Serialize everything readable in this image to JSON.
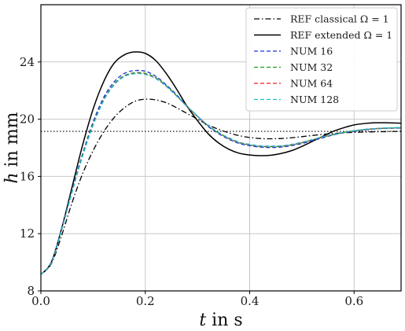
{
  "chart_data": {
    "type": "line",
    "xlabel": {
      "var": "t",
      "text": " in s"
    },
    "ylabel": {
      "var": "h",
      "text": " in mm"
    },
    "xlim": [
      0.0,
      0.69
    ],
    "ylim": [
      8,
      28
    ],
    "xticks": [
      0.0,
      0.2,
      0.4,
      0.6
    ],
    "yticks": [
      8,
      12,
      16,
      20,
      24
    ],
    "xtick_labels": [
      "0.0",
      "0.2",
      "0.4",
      "0.6"
    ],
    "ytick_labels": [
      "8",
      "12",
      "16",
      "20",
      "24"
    ],
    "grid": true,
    "legend_position": "top-right",
    "reference_line": {
      "y": 19.15,
      "style": "dotted",
      "color": "#000000"
    },
    "series": [
      {
        "name": "REF classical Ω = 1",
        "color": "#000000",
        "dash": "dashdot",
        "x": [
          0.0,
          0.02,
          0.04,
          0.06,
          0.08,
          0.1,
          0.12,
          0.14,
          0.16,
          0.18,
          0.2,
          0.22,
          0.24,
          0.26,
          0.28,
          0.3,
          0.32,
          0.34,
          0.36,
          0.38,
          0.4,
          0.42,
          0.44,
          0.46,
          0.48,
          0.5,
          0.52,
          0.54,
          0.56,
          0.58,
          0.6,
          0.62,
          0.64,
          0.66,
          0.69
        ],
        "y": [
          9.15,
          9.9,
          11.9,
          14.2,
          16.2,
          17.8,
          19.1,
          20.1,
          20.8,
          21.25,
          21.4,
          21.35,
          21.15,
          20.8,
          20.4,
          20.0,
          19.6,
          19.3,
          19.05,
          18.85,
          18.72,
          18.65,
          18.63,
          18.65,
          18.7,
          18.78,
          18.86,
          18.94,
          19.0,
          19.05,
          19.08,
          19.1,
          19.12,
          19.13,
          19.15
        ]
      },
      {
        "name": "REF extended Ω = 1",
        "color": "#000000",
        "dash": "solid",
        "x": [
          0.0,
          0.02,
          0.04,
          0.06,
          0.08,
          0.1,
          0.12,
          0.14,
          0.16,
          0.18,
          0.2,
          0.22,
          0.24,
          0.26,
          0.28,
          0.3,
          0.32,
          0.34,
          0.36,
          0.38,
          0.4,
          0.42,
          0.44,
          0.46,
          0.48,
          0.5,
          0.52,
          0.54,
          0.56,
          0.58,
          0.6,
          0.62,
          0.64,
          0.66,
          0.69
        ],
        "y": [
          9.15,
          10.0,
          12.4,
          15.3,
          18.2,
          20.7,
          22.6,
          23.9,
          24.5,
          24.7,
          24.6,
          24.1,
          23.2,
          22.1,
          20.9,
          19.9,
          19.0,
          18.35,
          17.9,
          17.62,
          17.5,
          17.45,
          17.48,
          17.6,
          17.8,
          18.1,
          18.45,
          18.8,
          19.15,
          19.4,
          19.6,
          19.7,
          19.75,
          19.75,
          19.72
        ]
      },
      {
        "name": "NUM 16",
        "color": "#1f2fd6",
        "dash": "dashed",
        "x": [
          0.0,
          0.02,
          0.04,
          0.06,
          0.08,
          0.1,
          0.12,
          0.14,
          0.16,
          0.18,
          0.2,
          0.22,
          0.24,
          0.26,
          0.28,
          0.3,
          0.32,
          0.34,
          0.36,
          0.38,
          0.4,
          0.42,
          0.44,
          0.46,
          0.48,
          0.5,
          0.52,
          0.54,
          0.56,
          0.58,
          0.6,
          0.62,
          0.64,
          0.66,
          0.69
        ],
        "y": [
          9.15,
          10.0,
          12.4,
          15.1,
          17.6,
          19.8,
          21.5,
          22.6,
          23.2,
          23.4,
          23.35,
          23.0,
          22.4,
          21.7,
          20.9,
          20.2,
          19.5,
          19.0,
          18.6,
          18.3,
          18.15,
          18.05,
          18.02,
          18.05,
          18.15,
          18.3,
          18.5,
          18.7,
          18.9,
          19.05,
          19.15,
          19.25,
          19.32,
          19.36,
          19.38
        ]
      },
      {
        "name": "NUM 32",
        "color": "#1f9a1f",
        "dash": "dashed",
        "x": [
          0.0,
          0.02,
          0.04,
          0.06,
          0.08,
          0.1,
          0.12,
          0.14,
          0.16,
          0.18,
          0.2,
          0.22,
          0.24,
          0.26,
          0.28,
          0.3,
          0.32,
          0.34,
          0.36,
          0.38,
          0.4,
          0.42,
          0.44,
          0.46,
          0.48,
          0.5,
          0.52,
          0.54,
          0.56,
          0.58,
          0.6,
          0.62,
          0.64,
          0.66,
          0.69
        ],
        "y": [
          9.15,
          9.95,
          12.3,
          15.0,
          17.5,
          19.65,
          21.35,
          22.45,
          23.05,
          23.25,
          23.2,
          22.9,
          22.35,
          21.65,
          20.9,
          20.2,
          19.55,
          19.05,
          18.65,
          18.35,
          18.2,
          18.1,
          18.08,
          18.1,
          18.2,
          18.35,
          18.55,
          18.75,
          18.92,
          19.07,
          19.18,
          19.27,
          19.33,
          19.37,
          19.4
        ]
      },
      {
        "name": "NUM 64",
        "color": "#e8211c",
        "dash": "dashed",
        "x": [
          0.0,
          0.02,
          0.04,
          0.06,
          0.08,
          0.1,
          0.12,
          0.14,
          0.16,
          0.18,
          0.2,
          0.22,
          0.24,
          0.26,
          0.28,
          0.3,
          0.32,
          0.34,
          0.36,
          0.38,
          0.4,
          0.42,
          0.44,
          0.46,
          0.48,
          0.5,
          0.52,
          0.54,
          0.56,
          0.58,
          0.6,
          0.62,
          0.64,
          0.66,
          0.69
        ],
        "y": [
          9.15,
          9.95,
          12.3,
          14.95,
          17.45,
          19.6,
          21.3,
          22.4,
          23.0,
          23.2,
          23.15,
          22.85,
          22.3,
          21.62,
          20.88,
          20.2,
          19.56,
          19.07,
          18.68,
          18.38,
          18.22,
          18.12,
          18.1,
          18.12,
          18.22,
          18.37,
          18.56,
          18.76,
          18.93,
          19.08,
          19.19,
          19.28,
          19.34,
          19.38,
          19.41
        ]
      },
      {
        "name": "NUM 128",
        "color": "#17becf",
        "dash": "dashed",
        "x": [
          0.0,
          0.02,
          0.04,
          0.06,
          0.08,
          0.1,
          0.12,
          0.14,
          0.16,
          0.18,
          0.2,
          0.22,
          0.24,
          0.26,
          0.28,
          0.3,
          0.32,
          0.34,
          0.36,
          0.38,
          0.4,
          0.42,
          0.44,
          0.46,
          0.48,
          0.5,
          0.52,
          0.54,
          0.56,
          0.58,
          0.6,
          0.62,
          0.64,
          0.66,
          0.69
        ],
        "y": [
          9.15,
          9.95,
          12.3,
          14.95,
          17.45,
          19.58,
          21.28,
          22.38,
          22.98,
          23.18,
          23.13,
          22.84,
          22.3,
          21.62,
          20.9,
          20.22,
          19.58,
          19.08,
          18.7,
          18.4,
          18.24,
          18.14,
          18.12,
          18.14,
          18.24,
          18.39,
          18.58,
          18.77,
          18.94,
          19.09,
          19.2,
          19.29,
          19.35,
          19.39,
          19.42
        ]
      }
    ]
  }
}
